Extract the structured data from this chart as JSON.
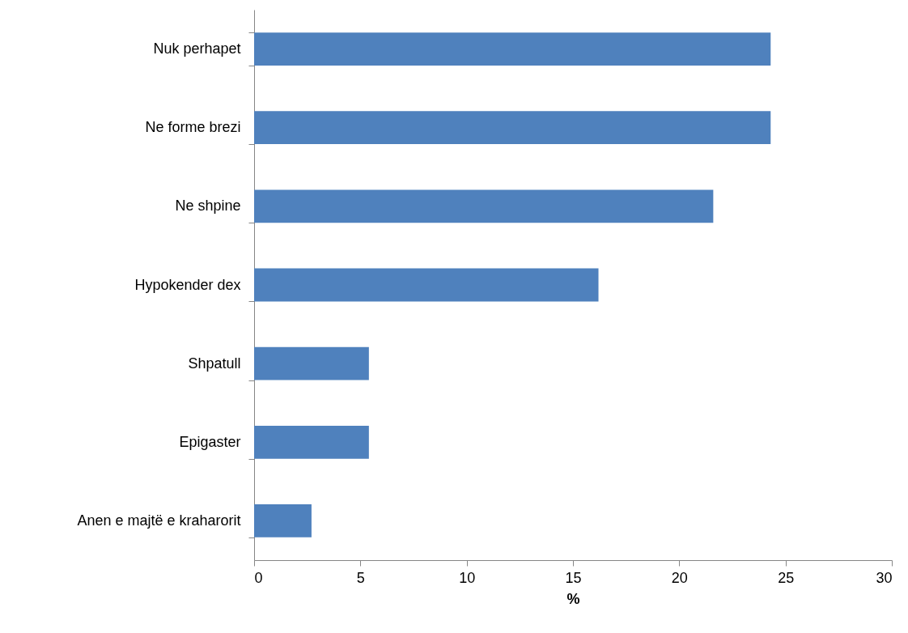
{
  "chart_data": {
    "type": "bar",
    "orientation": "horizontal",
    "xlabel": "%",
    "categories": [
      "Nuk perhapet",
      "Ne forme brezi",
      "Ne shpine",
      "Hypokender dex",
      "Shpatull",
      "Epigaster",
      "Anen e majtë e kraharorit"
    ],
    "values": [
      24.3,
      24.3,
      21.6,
      16.2,
      5.4,
      5.4,
      2.7
    ],
    "color": "#4f81bd",
    "xlim": [
      0,
      30
    ],
    "xticks": [
      0,
      5,
      10,
      15,
      20,
      25,
      30
    ],
    "grid": false
  }
}
